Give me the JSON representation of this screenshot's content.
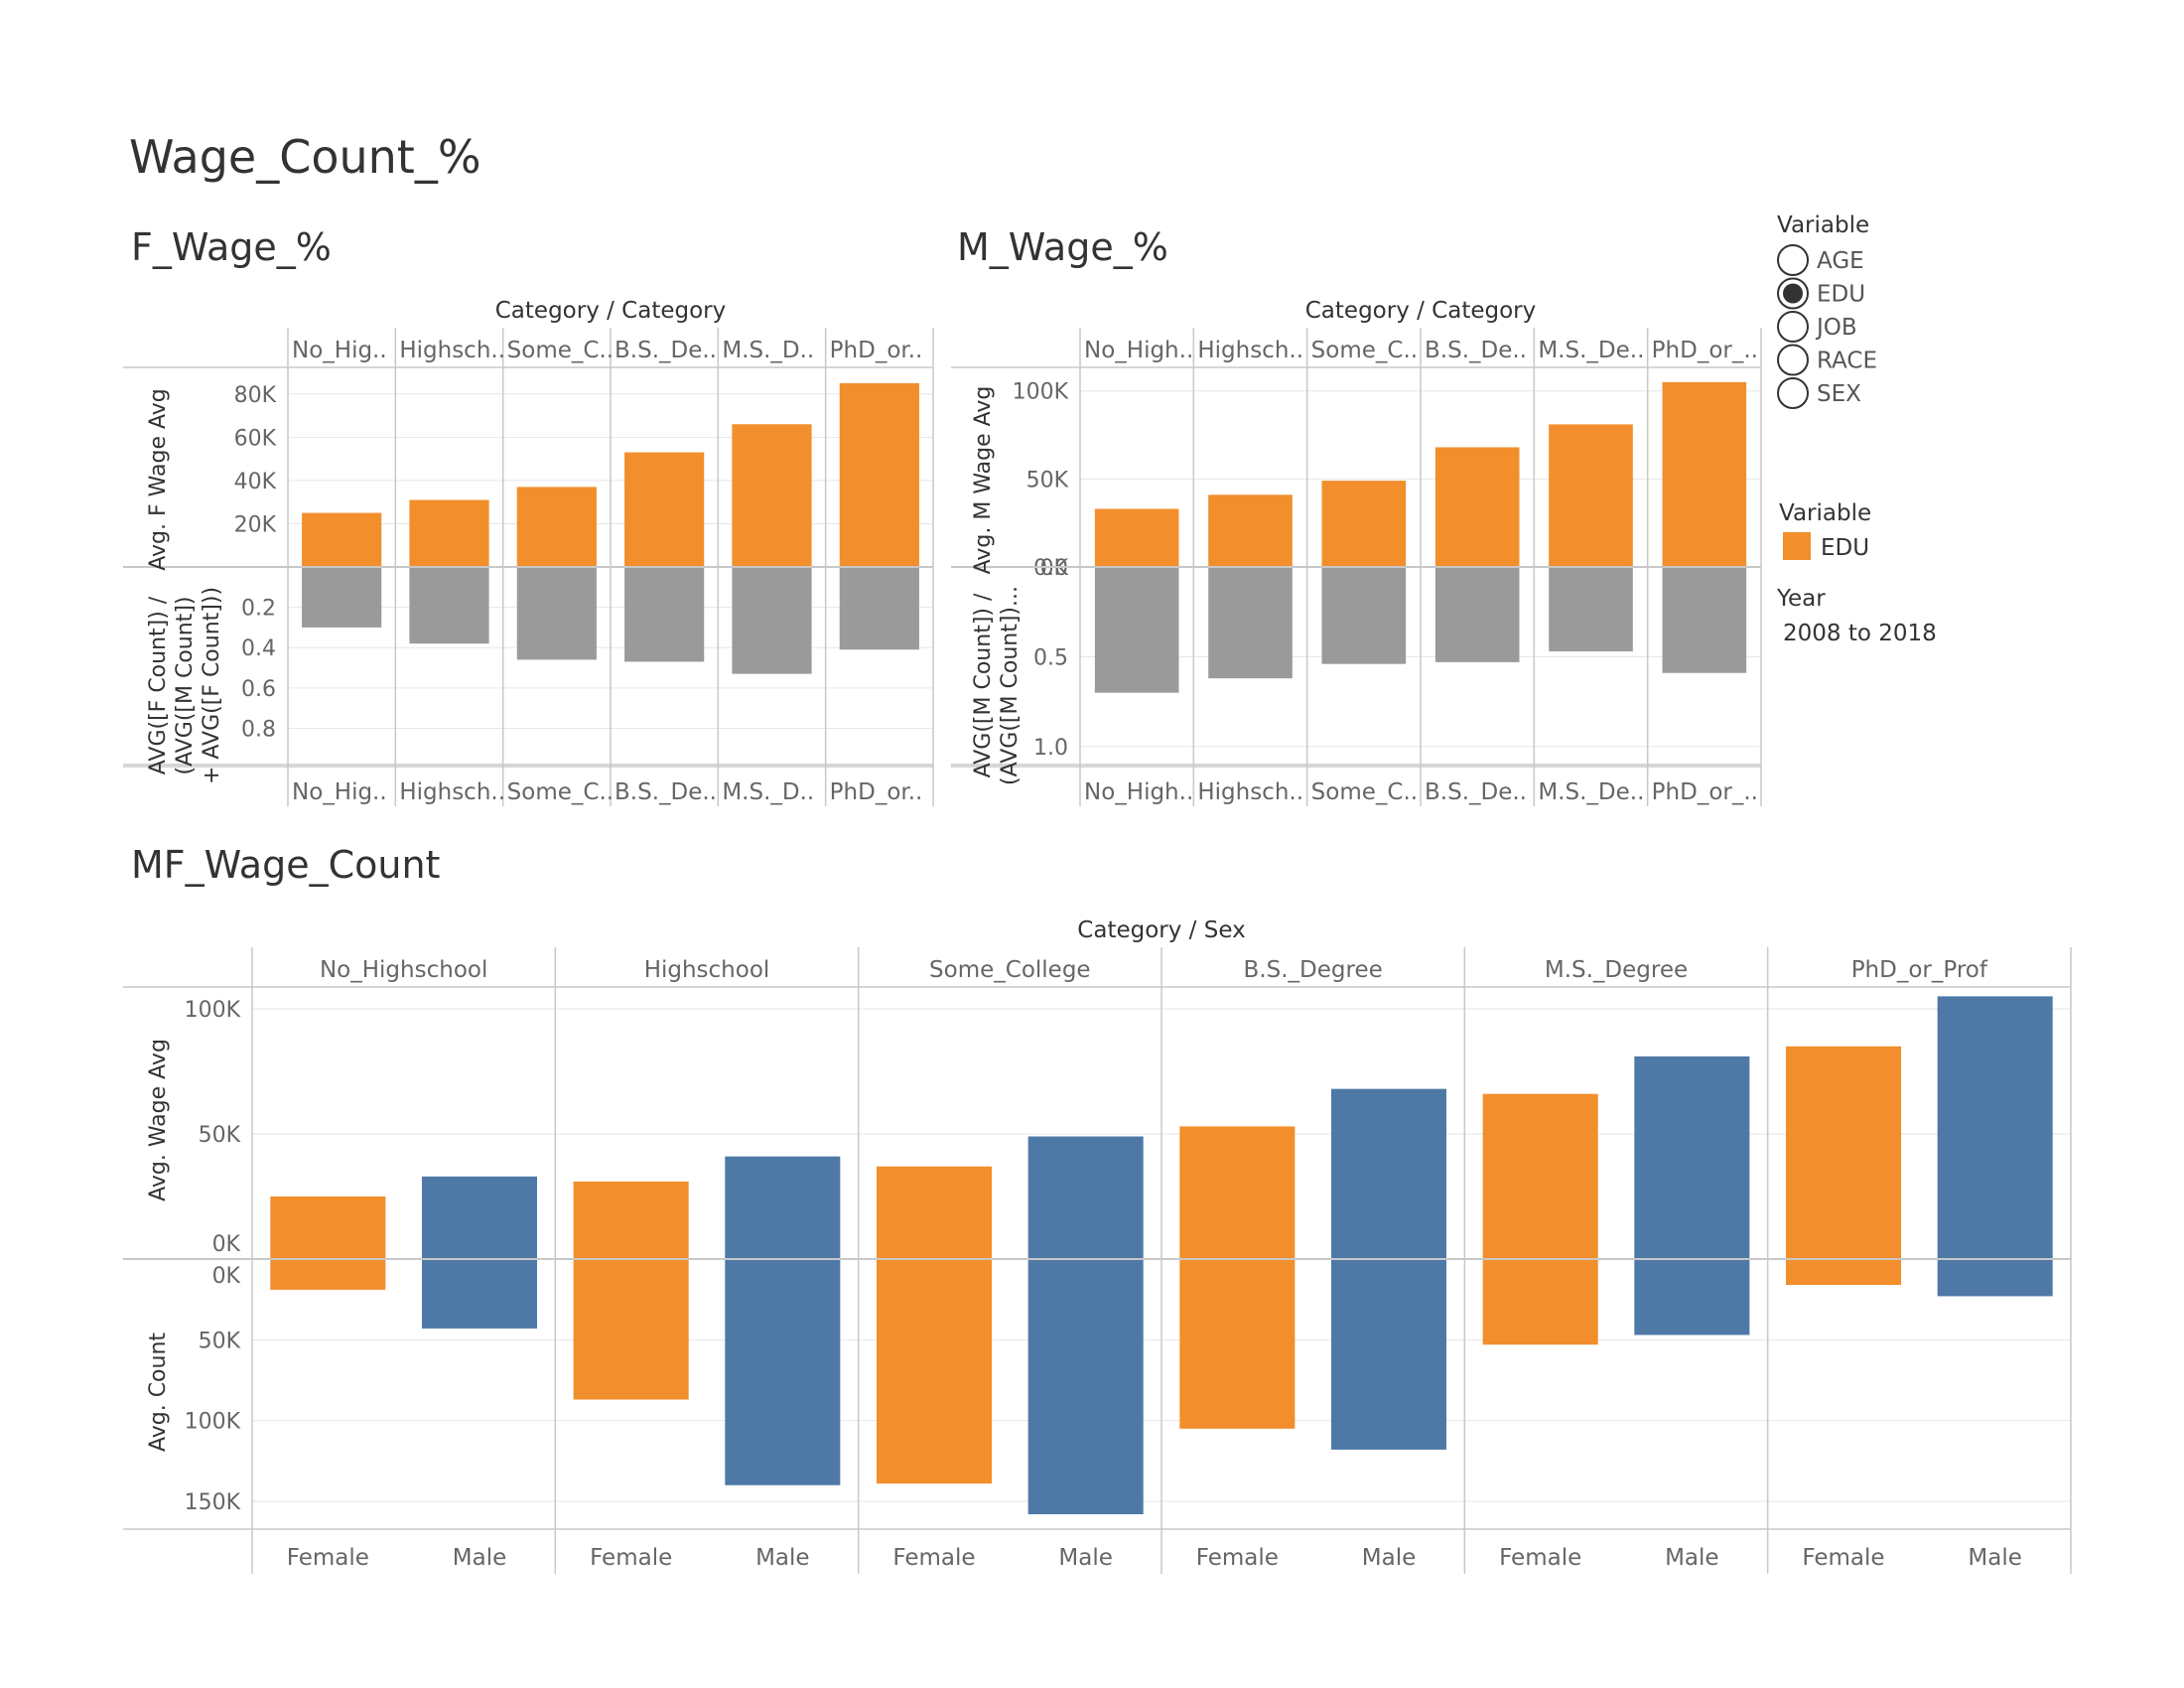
{
  "dashboard": {
    "title": "Wage_Count_%"
  },
  "colors": {
    "female": "#f28e2b",
    "male": "#4e79a7",
    "ratio": "#9a9a9a",
    "grid": "#e6e6e6",
    "axis": "#c8c8c8"
  },
  "legend_variable": {
    "title": "Variable",
    "options": [
      "AGE",
      "EDU",
      "JOB",
      "RACE",
      "SEX"
    ],
    "selected": "EDU"
  },
  "legend_color": {
    "title": "Variable",
    "item": "EDU"
  },
  "legend_year": {
    "title": "Year",
    "value": "2008 to 2018"
  },
  "chart_data": [
    {
      "name": "F_Wage_%",
      "type": "bar",
      "title": "F_Wage_%",
      "header": "Category / Category",
      "categories": [
        "No_Highschool",
        "Highschool",
        "Some_College",
        "B.S._Degree",
        "M.S._Degree",
        "PhD_or_Prof"
      ],
      "category_labels": [
        "No_Hig..",
        "Highsch..",
        "Some_C..",
        "B.S._De..",
        "M.S._D..",
        "PhD_or.."
      ],
      "top": {
        "ylabel": "Avg. F Wage Avg",
        "values": [
          25000,
          31000,
          37000,
          53000,
          66000,
          85000
        ],
        "ylim": [
          0,
          90000
        ],
        "ticks": [
          20000,
          40000,
          60000,
          80000
        ],
        "tick_labels": [
          "20K",
          "40K",
          "60K",
          "80K"
        ]
      },
      "bottom": {
        "ylabel_lines": [
          "AVG([F Count]) /",
          "(AVG([M Count])",
          "+ AVG([F Count]))"
        ],
        "values": [
          0.3,
          0.38,
          0.46,
          0.47,
          0.53,
          0.41
        ],
        "ylim": [
          0,
          0.98
        ],
        "ticks": [
          0.2,
          0.4,
          0.6,
          0.8
        ],
        "tick_labels": [
          "0.2",
          "0.4",
          "0.6",
          "0.8"
        ]
      }
    },
    {
      "name": "M_Wage_%",
      "type": "bar",
      "title": "M_Wage_%",
      "header": "Category / Category",
      "categories": [
        "No_Highschool",
        "Highschool",
        "Some_College",
        "B.S._Degree",
        "M.S._Degree",
        "PhD_or_Prof"
      ],
      "category_labels": [
        "No_High..",
        "Highsch..",
        "Some_C..",
        "B.S._De..",
        "M.S._De..",
        "PhD_or_.."
      ],
      "top": {
        "ylabel": "Avg. M Wage Avg",
        "values": [
          33000,
          41000,
          49000,
          68000,
          81000,
          105000
        ],
        "ylim": [
          0,
          110000
        ],
        "ticks": [
          0,
          50000,
          100000
        ],
        "tick_labels": [
          "0K",
          "50K",
          "100K"
        ]
      },
      "bottom": {
        "ylabel_lines": [
          "AVG([M Count]) /",
          "(AVG([M Count])..."
        ],
        "values": [
          0.7,
          0.62,
          0.54,
          0.53,
          0.47,
          0.59
        ],
        "ylim": [
          0,
          1.1
        ],
        "ticks": [
          0,
          0.5,
          1.0
        ],
        "tick_labels": [
          "0.0",
          "0.5",
          "1.0"
        ]
      }
    },
    {
      "name": "MF_Wage_Count",
      "type": "bar",
      "title": "MF_Wage_Count",
      "header": "Category / Sex",
      "categories": [
        "No_Highschool",
        "Highschool",
        "Some_College",
        "B.S._Degree",
        "M.S._Degree",
        "PhD_or_Prof"
      ],
      "sexes": [
        "Female",
        "Male"
      ],
      "top": {
        "ylabel": "Avg. Wage Avg",
        "series": [
          {
            "name": "Female",
            "values": [
              25000,
              31000,
              37000,
              53000,
              66000,
              85000
            ]
          },
          {
            "name": "Male",
            "values": [
              33000,
              41000,
              49000,
              68000,
              81000,
              105000
            ]
          }
        ],
        "ylim": [
          0,
          110000
        ],
        "ticks": [
          0,
          50000,
          100000
        ],
        "tick_labels": [
          "0K",
          "50K",
          "100K"
        ]
      },
      "bottom": {
        "ylabel": "Avg. Count",
        "series": [
          {
            "name": "Female",
            "values": [
              19000,
              87000,
              139000,
              105000,
              53000,
              16000
            ]
          },
          {
            "name": "Male",
            "values": [
              43000,
              140000,
              158000,
              118000,
              47000,
              23000
            ]
          }
        ],
        "ylim": [
          0,
          167000
        ],
        "ticks": [
          0,
          50000,
          100000,
          150000
        ],
        "tick_labels": [
          "0K",
          "50K",
          "100K",
          "150K"
        ]
      }
    }
  ]
}
